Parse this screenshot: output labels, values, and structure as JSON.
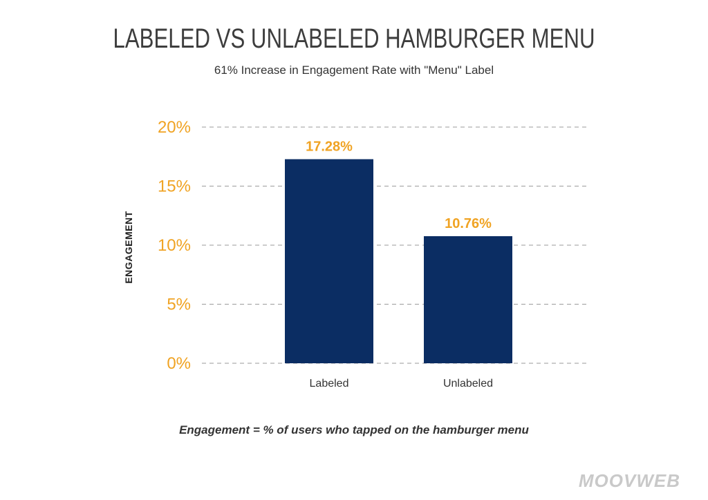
{
  "chart_data": {
    "type": "bar",
    "title": "LABELED VS UNLABELED HAMBURGER MENU",
    "subtitle": "61% Increase in Engagement Rate with \"Menu\" Label",
    "ylabel": "ENGAGEMENT",
    "categories": [
      "Labeled",
      "Unlabeled"
    ],
    "values": [
      17.28,
      10.76
    ],
    "data_labels": [
      "17.28%",
      "10.76%"
    ],
    "yticks": [
      "0%",
      "5%",
      "10%",
      "15%",
      "20%"
    ],
    "ylim": [
      0,
      20
    ],
    "grid": true,
    "grid_style": "dashed",
    "bar_color": "#0b2d63",
    "accent_color": "#f0a323",
    "footnote": "Engagement = % of users who tapped on the hamburger menu"
  },
  "brand": "MOOVWEB"
}
